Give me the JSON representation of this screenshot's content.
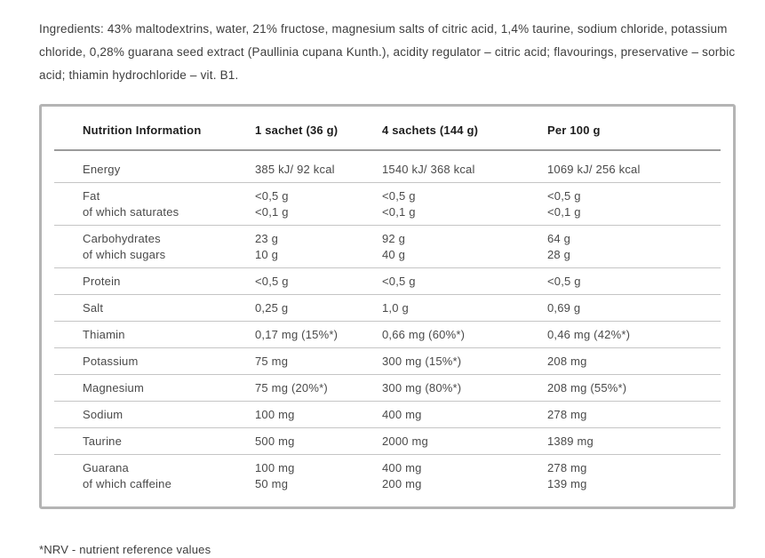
{
  "ingredients": {
    "text": "Ingredients: 43% maltodextrins, water, 21% fructose, magnesium salts of citric acid, 1,4% taurine, sodium chloride, potassium chloride, 0,28% guarana seed extract (Paullinia cupana Kunth.), acidity regulator – citric acid; flavourings, preservative – sorbic acid; thiamin hydrochloride – vit. B1."
  },
  "table": {
    "columns": [
      "Nutrition Information",
      "1 sachet (36 g)",
      "4 sachets (144 g)",
      "Per 100 g"
    ],
    "rows": [
      {
        "label": [
          "Energy"
        ],
        "values": [
          [
            "385 kJ/ 92 kcal"
          ],
          [
            "1540 kJ/ 368 kcal"
          ],
          [
            "1069 kJ/ 256 kcal"
          ]
        ]
      },
      {
        "label": [
          "Fat",
          "of which saturates"
        ],
        "values": [
          [
            "<0,5 g",
            "<0,1 g"
          ],
          [
            "<0,5 g",
            "<0,1 g"
          ],
          [
            "<0,5 g",
            "<0,1 g"
          ]
        ]
      },
      {
        "label": [
          "Carbohydrates",
          "of which sugars"
        ],
        "values": [
          [
            "23 g",
            "10 g"
          ],
          [
            "92 g",
            "40 g"
          ],
          [
            "64 g",
            "28 g"
          ]
        ]
      },
      {
        "label": [
          "Protein"
        ],
        "values": [
          [
            "<0,5 g"
          ],
          [
            "<0,5 g"
          ],
          [
            "<0,5 g"
          ]
        ]
      },
      {
        "label": [
          "Salt"
        ],
        "values": [
          [
            "0,25 g"
          ],
          [
            "1,0 g"
          ],
          [
            "0,69 g"
          ]
        ]
      },
      {
        "label": [
          "Thiamin"
        ],
        "values": [
          [
            "0,17 mg (15%*)"
          ],
          [
            "0,66 mg (60%*)"
          ],
          [
            "0,46 mg (42%*)"
          ]
        ]
      },
      {
        "label": [
          "Potassium"
        ],
        "values": [
          [
            "75 mg"
          ],
          [
            "300 mg (15%*)"
          ],
          [
            "208 mg"
          ]
        ]
      },
      {
        "label": [
          "Magnesium"
        ],
        "values": [
          [
            "75 mg (20%*)"
          ],
          [
            "300 mg (80%*)"
          ],
          [
            "208 mg (55%*)"
          ]
        ]
      },
      {
        "label": [
          "Sodium"
        ],
        "values": [
          [
            "100 mg"
          ],
          [
            "400 mg"
          ],
          [
            "278 mg"
          ]
        ]
      },
      {
        "label": [
          "Taurine"
        ],
        "values": [
          [
            "500 mg"
          ],
          [
            "2000 mg"
          ],
          [
            "1389 mg"
          ]
        ]
      },
      {
        "label": [
          "Guarana",
          "of which caffeine"
        ],
        "values": [
          [
            "100 mg",
            "50 mg"
          ],
          [
            "400 mg",
            "200 mg"
          ],
          [
            "278 mg",
            "139 mg"
          ]
        ]
      }
    ]
  },
  "footnote": {
    "text": "*NRV - nutrient reference values"
  },
  "colors": {
    "page_background": "#ffffff",
    "body_text": "#3d3d3d",
    "table_text": "#4a4a4a",
    "header_text": "#1d1d1d",
    "table_border": "#b4b4b4",
    "header_rule": "#9b9b9b",
    "row_rule": "#c5c5c5"
  }
}
